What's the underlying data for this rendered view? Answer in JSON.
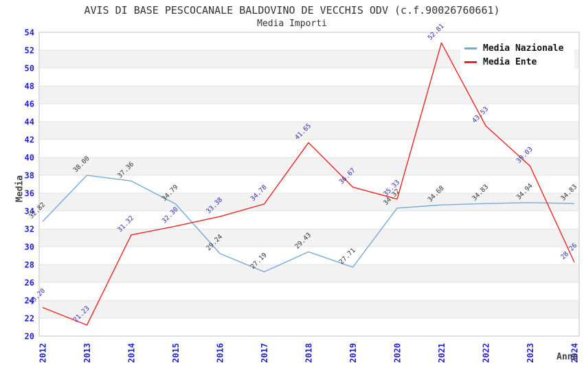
{
  "header": {
    "title": "AVIS DI BASE PESCOCANALE BALDOVINO DE VECCHIS ODV (c.f.90026760661)",
    "subtitle": "Media Importi"
  },
  "colors": {
    "tick_label": "#2222cc",
    "axis_title": "#404040",
    "grid_line": "#e4e4e4",
    "band_fill": "#f2f2f2",
    "plot_border": "#cccccc",
    "title_text": "#333333"
  },
  "chart_data": {
    "type": "line",
    "title": "AVIS DI BASE PESCOCANALE BALDOVINO DE VECCHIS ODV (c.f.90026760661)",
    "subtitle": "Media Importi",
    "xlabel": "Anno",
    "ylabel": "Media",
    "ylim": [
      20,
      54
    ],
    "ytick_step": 2,
    "grid": "horizontal-bands",
    "legend_position": "top-right",
    "categories": [
      "2012",
      "2013",
      "2014",
      "2015",
      "2016",
      "2017",
      "2018",
      "2019",
      "2020",
      "2021",
      "2022",
      "2023",
      "2024"
    ],
    "series": [
      {
        "name": "Media Nazionale",
        "color": "#74a9dd",
        "label_color": "#333333",
        "values": [
          32.82,
          38.0,
          37.36,
          34.79,
          29.24,
          27.19,
          29.43,
          27.71,
          34.32,
          34.68,
          34.83,
          34.94,
          34.83
        ]
      },
      {
        "name": "Media Ente",
        "color": "#ee2222",
        "label_color": "#3333aa",
        "values": [
          23.2,
          21.23,
          31.32,
          32.3,
          33.38,
          34.78,
          41.65,
          36.67,
          35.33,
          52.81,
          43.53,
          39.03,
          28.26
        ]
      }
    ]
  }
}
